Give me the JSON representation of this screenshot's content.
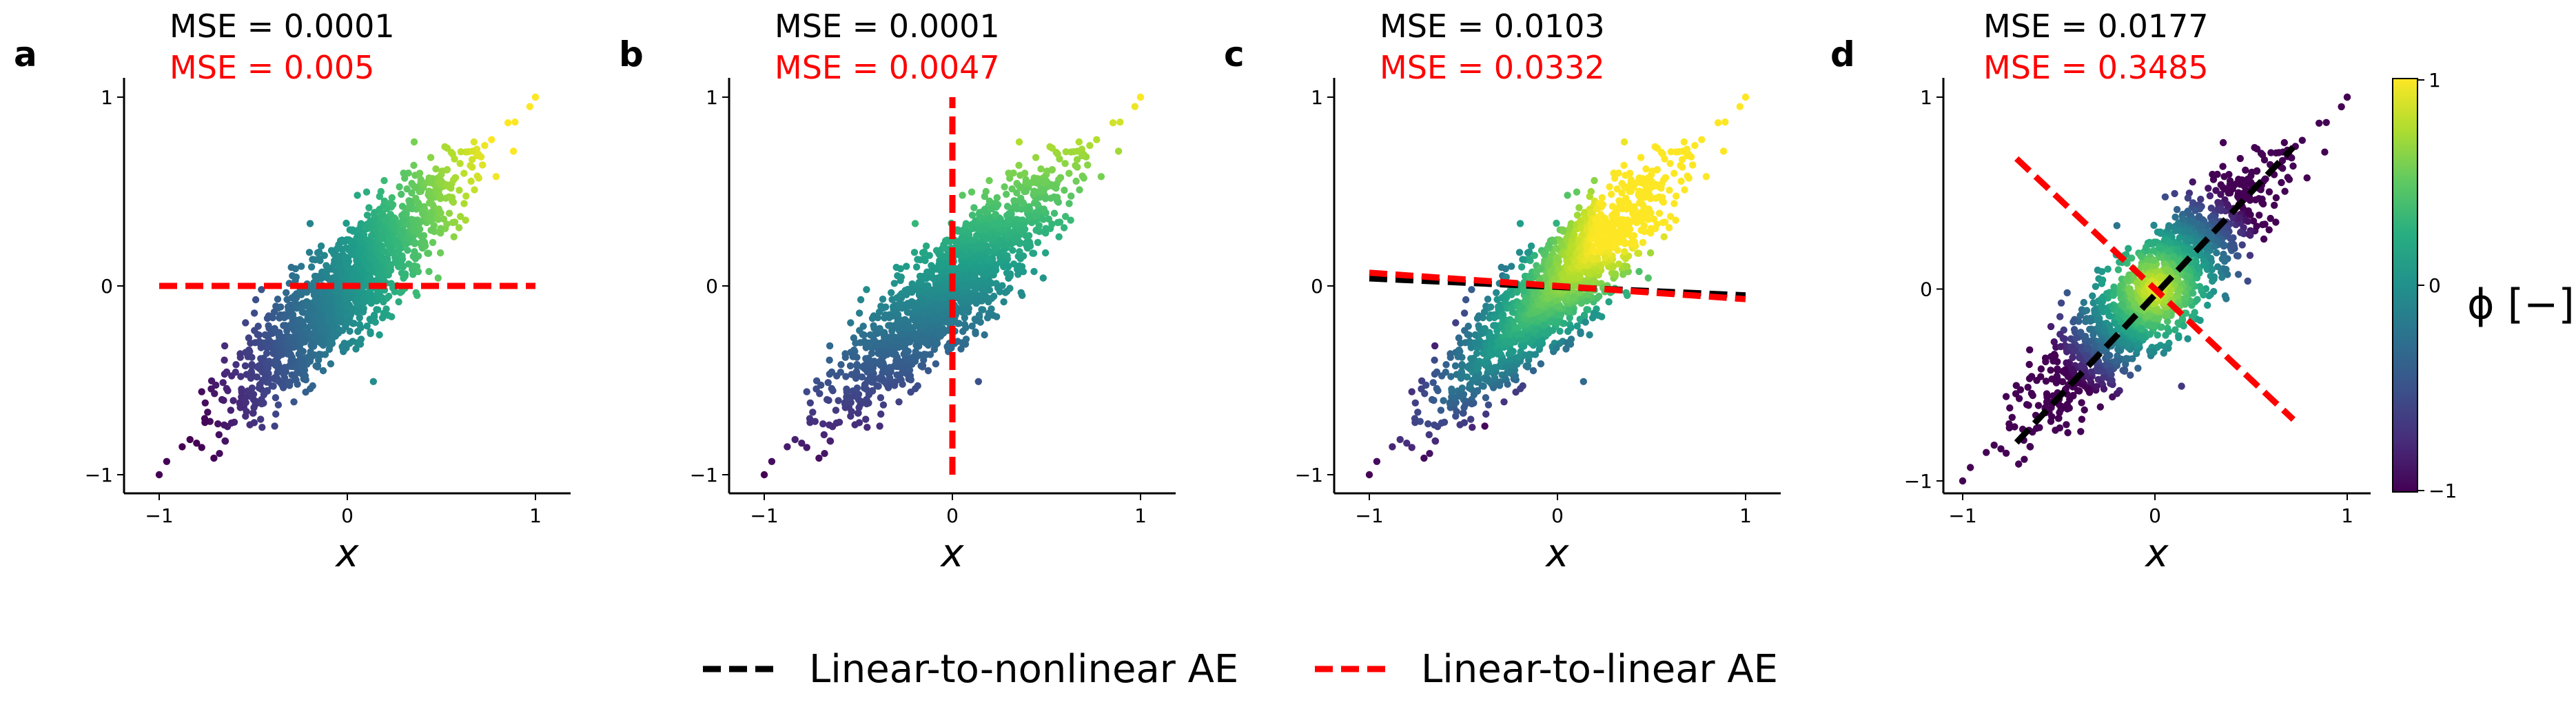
{
  "chart_data": [
    {
      "type": "scatter",
      "panel": "a",
      "xlabel": "x",
      "xlim": [
        -1,
        1
      ],
      "ylim": [
        -1,
        1
      ],
      "xticks": [
        "−1",
        "0",
        "1"
      ],
      "yticks": [
        "−1",
        "0",
        "1"
      ],
      "scatter_correlation": 0.85,
      "color_mode": "x",
      "mse_labels": [
        {
          "text": "MSE = 0.0001",
          "color": "#000000"
        },
        {
          "text": "MSE = 0.005",
          "color": "#ff0000"
        }
      ],
      "lines": [
        {
          "style": "nonlinear",
          "x": [
            -1,
            1
          ],
          "y": [
            0,
            0
          ]
        },
        {
          "style": "linear",
          "x": [
            -1,
            1
          ],
          "y": [
            0,
            0
          ]
        }
      ]
    },
    {
      "type": "scatter",
      "panel": "b",
      "xlabel": "x",
      "xlim": [
        -1,
        1
      ],
      "ylim": [
        -1,
        1
      ],
      "xticks": [
        "−1",
        "0",
        "1"
      ],
      "yticks": [
        "−1",
        "0",
        "1"
      ],
      "scatter_correlation": 0.85,
      "color_mode": "y",
      "mse_labels": [
        {
          "text": "MSE = 0.0001",
          "color": "#000000"
        },
        {
          "text": "MSE = 0.0047",
          "color": "#ff0000"
        }
      ],
      "lines": [
        {
          "style": "nonlinear",
          "x": [
            0,
            0
          ],
          "y": [
            -1,
            1
          ]
        },
        {
          "style": "linear",
          "x": [
            0,
            0
          ],
          "y": [
            -1,
            1
          ]
        }
      ]
    },
    {
      "type": "scatter",
      "panel": "c",
      "xlabel": "x",
      "xlim": [
        -1,
        1
      ],
      "ylim": [
        -1,
        1
      ],
      "xticks": [
        "−1",
        "0",
        "1"
      ],
      "yticks": [
        "−1",
        "0",
        "1"
      ],
      "scatter_correlation": 0.85,
      "color_mode": "u",
      "mse_labels": [
        {
          "text": "MSE = 0.0103",
          "color": "#000000"
        },
        {
          "text": "MSE = 0.0332",
          "color": "#ff0000"
        }
      ],
      "lines": [
        {
          "style": "nonlinear",
          "x": [
            -1,
            1
          ],
          "y": [
            0.04,
            -0.05
          ]
        },
        {
          "style": "linear",
          "x": [
            -1,
            1
          ],
          "y": [
            0.07,
            -0.07
          ]
        }
      ]
    },
    {
      "type": "scatter",
      "panel": "d",
      "xlabel": "x",
      "xlim": [
        -1,
        1
      ],
      "ylim": [
        -1,
        1
      ],
      "xticks": [
        "−1",
        "0",
        "1"
      ],
      "yticks": [
        "−1",
        "0",
        "1"
      ],
      "scatter_correlation": 0.85,
      "color_mode": "radial",
      "mse_labels": [
        {
          "text": "MSE = 0.0177",
          "color": "#000000"
        },
        {
          "text": "MSE = 0.3485",
          "color": "#ff0000"
        }
      ],
      "lines": [
        {
          "style": "nonlinear",
          "x": [
            -0.72,
            0.72
          ],
          "y": [
            -0.8,
            0.74
          ]
        },
        {
          "style": "linear",
          "x": [
            -0.72,
            0.72
          ],
          "y": [
            0.68,
            -0.68
          ]
        }
      ]
    }
  ],
  "colorbar": {
    "label": "ϕ [−]",
    "ticks": [
      "1",
      "0",
      "−1"
    ],
    "range": [
      -1,
      1
    ],
    "colormap": "viridis"
  },
  "legend": [
    {
      "label": "Linear-to-nonlinear AE",
      "color": "#000000"
    },
    {
      "label": "Linear-to-linear AE",
      "color": "#ff0000"
    }
  ]
}
